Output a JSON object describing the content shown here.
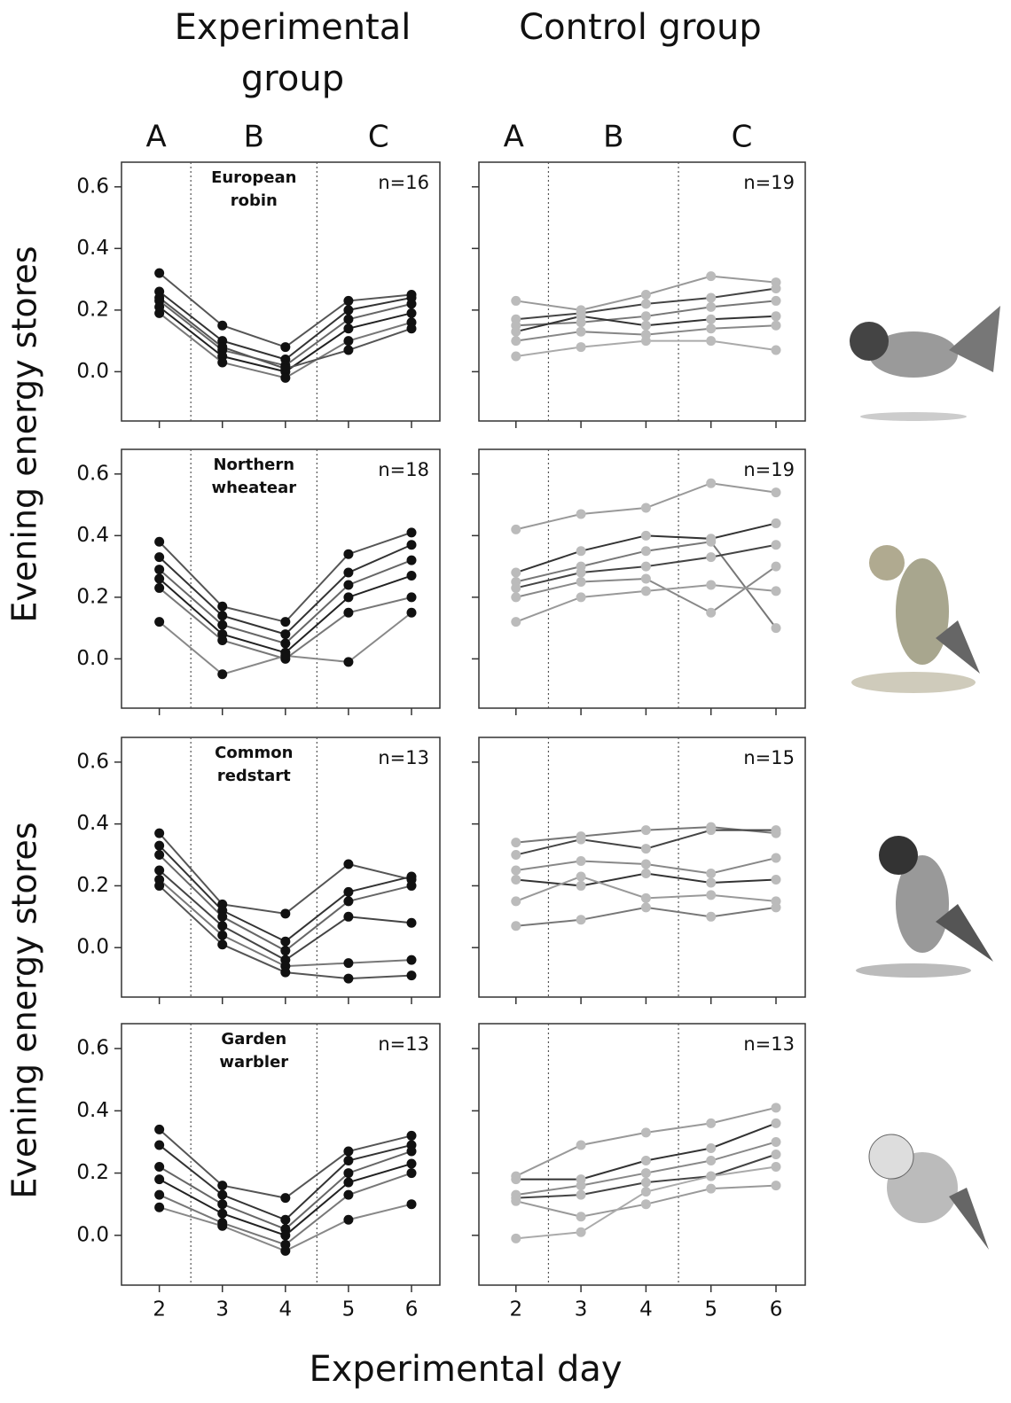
{
  "column_titles": [
    "Experimental group",
    "Control group"
  ],
  "y_label": "Evening energy stores",
  "x_label": "Experimental day",
  "chart_data": [
    {
      "type": "line",
      "title": "European robin",
      "annotation": "n=16",
      "phase_labels": [
        "A",
        "B",
        "C"
      ],
      "x": [
        2,
        3,
        4,
        5,
        6
      ],
      "xlim": [
        1.4,
        6.45
      ],
      "ylim": [
        -0.16,
        0.68
      ],
      "xticks": [
        2,
        3,
        4,
        5,
        6
      ],
      "yticks": [
        {
          "value": 0,
          "label": "0.0"
        },
        0.2,
        0.4,
        0.6
      ],
      "show_xtick_labels": false,
      "show_ytick_labels": true,
      "marker_color": "#111111",
      "series": [
        {
          "color": "#555555",
          "values": [
            0.32,
            0.15,
            0.08,
            0.23,
            0.25
          ]
        },
        {
          "color": "#333333",
          "values": [
            0.26,
            0.1,
            0.04,
            0.2,
            0.24
          ]
        },
        {
          "color": "#666666",
          "values": [
            0.23,
            0.07,
            0.02,
            0.17,
            0.22
          ]
        },
        {
          "color": "#222222",
          "values": [
            0.21,
            0.05,
            0.0,
            0.14,
            0.19
          ]
        },
        {
          "color": "#777777",
          "values": [
            0.19,
            0.03,
            -0.02,
            0.1,
            0.16
          ]
        },
        {
          "color": "#555555",
          "values": [
            0.24,
            0.08,
            0.01,
            0.07,
            0.14
          ]
        }
      ]
    },
    {
      "type": "line",
      "annotation": "n=19",
      "phase_labels": [
        "A",
        "B",
        "C"
      ],
      "x": [
        2,
        3,
        4,
        5,
        6
      ],
      "xlim": [
        1.43,
        6.45
      ],
      "ylim": [
        -0.16,
        0.68
      ],
      "xticks": [
        2,
        3,
        4,
        5,
        6
      ],
      "yticks": [
        0,
        0.2,
        0.4,
        0.6
      ],
      "show_xtick_labels": false,
      "show_ytick_labels": false,
      "marker_color": "#bbbbbb",
      "series": [
        {
          "color": "#999999",
          "values": [
            0.23,
            0.2,
            0.25,
            0.31,
            0.29
          ]
        },
        {
          "color": "#444444",
          "values": [
            0.17,
            0.19,
            0.22,
            0.24,
            0.27
          ]
        },
        {
          "color": "#777777",
          "values": [
            0.15,
            0.16,
            0.18,
            0.21,
            0.23
          ]
        },
        {
          "color": "#333333",
          "values": [
            0.13,
            0.18,
            0.15,
            0.17,
            0.18
          ]
        },
        {
          "color": "#888888",
          "values": [
            0.1,
            0.13,
            0.12,
            0.14,
            0.15
          ]
        },
        {
          "color": "#aaaaaa",
          "values": [
            0.05,
            0.08,
            0.1,
            0.1,
            0.07
          ]
        }
      ]
    },
    {
      "type": "line",
      "title": "Northern wheatear",
      "annotation": "n=18",
      "x": [
        2,
        3,
        4,
        5,
        6
      ],
      "xlim": [
        1.4,
        6.45
      ],
      "ylim": [
        -0.16,
        0.68
      ],
      "xticks": [
        2,
        3,
        4,
        5,
        6
      ],
      "yticks": [
        {
          "value": 0,
          "label": "0.0"
        },
        0.2,
        0.4,
        0.6
      ],
      "show_xtick_labels": false,
      "show_ytick_labels": true,
      "marker_color": "#111111",
      "series": [
        {
          "color": "#555555",
          "values": [
            0.38,
            0.17,
            0.12,
            0.34,
            0.41
          ]
        },
        {
          "color": "#333333",
          "values": [
            0.33,
            0.14,
            0.08,
            0.28,
            0.37
          ]
        },
        {
          "color": "#666666",
          "values": [
            0.29,
            0.11,
            0.05,
            0.24,
            0.32
          ]
        },
        {
          "color": "#222222",
          "values": [
            0.26,
            0.08,
            0.02,
            0.2,
            0.27
          ]
        },
        {
          "color": "#777777",
          "values": [
            0.23,
            0.06,
            0.0,
            0.15,
            0.2
          ]
        },
        {
          "color": "#888888",
          "values": [
            0.12,
            -0.05,
            0.01,
            -0.01,
            0.15
          ]
        }
      ]
    },
    {
      "type": "line",
      "annotation": "n=19",
      "x": [
        2,
        3,
        4,
        5,
        6
      ],
      "xlim": [
        1.43,
        6.45
      ],
      "ylim": [
        -0.16,
        0.68
      ],
      "xticks": [
        2,
        3,
        4,
        5,
        6
      ],
      "yticks": [
        0,
        0.2,
        0.4,
        0.6
      ],
      "show_xtick_labels": false,
      "show_ytick_labels": false,
      "marker_color": "#bbbbbb",
      "series": [
        {
          "color": "#999999",
          "values": [
            0.42,
            0.47,
            0.49,
            0.57,
            0.54
          ]
        },
        {
          "color": "#333333",
          "values": [
            0.28,
            0.35,
            0.4,
            0.39,
            0.44
          ]
        },
        {
          "color": "#777777",
          "values": [
            0.25,
            0.3,
            0.35,
            0.38,
            0.1
          ]
        },
        {
          "color": "#444444",
          "values": [
            0.23,
            0.28,
            0.3,
            0.33,
            0.37
          ]
        },
        {
          "color": "#888888",
          "values": [
            0.2,
            0.25,
            0.26,
            0.15,
            0.3
          ]
        },
        {
          "color": "#999999",
          "values": [
            0.12,
            0.2,
            0.22,
            0.24,
            0.22
          ]
        }
      ]
    },
    {
      "type": "line",
      "title": "Common redstart",
      "annotation": "n=13",
      "x": [
        2,
        3,
        4,
        5,
        6
      ],
      "xlim": [
        1.4,
        6.45
      ],
      "ylim": [
        -0.16,
        0.68
      ],
      "xticks": [
        2,
        3,
        4,
        5,
        6
      ],
      "yticks": [
        {
          "value": 0,
          "label": "0.0"
        },
        0.2,
        0.4,
        0.6
      ],
      "show_xtick_labels": false,
      "show_ytick_labels": true,
      "marker_color": "#111111",
      "series": [
        {
          "color": "#555555",
          "values": [
            0.37,
            0.14,
            0.11,
            0.27,
            0.22
          ]
        },
        {
          "color": "#333333",
          "values": [
            0.33,
            0.12,
            0.02,
            0.18,
            0.23
          ]
        },
        {
          "color": "#666666",
          "values": [
            0.3,
            0.1,
            -0.01,
            0.15,
            0.2
          ]
        },
        {
          "color": "#444444",
          "values": [
            0.25,
            0.07,
            -0.04,
            0.1,
            0.08
          ]
        },
        {
          "color": "#777777",
          "values": [
            0.22,
            0.04,
            -0.06,
            -0.05,
            -0.04
          ]
        },
        {
          "color": "#555555",
          "values": [
            0.2,
            0.01,
            -0.08,
            -0.1,
            -0.09
          ]
        }
      ]
    },
    {
      "type": "line",
      "annotation": "n=15",
      "x": [
        2,
        3,
        4,
        5,
        6
      ],
      "xlim": [
        1.43,
        6.45
      ],
      "ylim": [
        -0.16,
        0.68
      ],
      "xticks": [
        2,
        3,
        4,
        5,
        6
      ],
      "yticks": [
        0,
        0.2,
        0.4,
        0.6
      ],
      "show_xtick_labels": false,
      "show_ytick_labels": false,
      "marker_color": "#bbbbbb",
      "series": [
        {
          "color": "#777777",
          "values": [
            0.34,
            0.36,
            0.38,
            0.39,
            0.37
          ]
        },
        {
          "color": "#444444",
          "values": [
            0.3,
            0.35,
            0.32,
            0.38,
            0.38
          ]
        },
        {
          "color": "#888888",
          "values": [
            0.25,
            0.28,
            0.27,
            0.24,
            0.29
          ]
        },
        {
          "color": "#333333",
          "values": [
            0.22,
            0.2,
            0.24,
            0.21,
            0.22
          ]
        },
        {
          "color": "#999999",
          "values": [
            0.15,
            0.23,
            0.16,
            0.17,
            0.15
          ]
        },
        {
          "color": "#777777",
          "values": [
            0.07,
            0.09,
            0.13,
            0.1,
            0.13
          ]
        }
      ]
    },
    {
      "type": "line",
      "title": "Garden warbler",
      "annotation": "n=13",
      "x": [
        2,
        3,
        4,
        5,
        6
      ],
      "xlim": [
        1.4,
        6.45
      ],
      "ylim": [
        -0.16,
        0.68
      ],
      "xticks": [
        2,
        3,
        4,
        5,
        6
      ],
      "yticks": [
        {
          "value": 0,
          "label": "0.0"
        },
        0.2,
        0.4,
        0.6
      ],
      "show_xtick_labels": true,
      "show_ytick_labels": true,
      "marker_color": "#111111",
      "series": [
        {
          "color": "#555555",
          "values": [
            0.34,
            0.16,
            0.12,
            0.27,
            0.32
          ]
        },
        {
          "color": "#333333",
          "values": [
            0.29,
            0.13,
            0.05,
            0.24,
            0.29
          ]
        },
        {
          "color": "#666666",
          "values": [
            0.22,
            0.1,
            0.02,
            0.2,
            0.27
          ]
        },
        {
          "color": "#222222",
          "values": [
            0.18,
            0.07,
            0.0,
            0.17,
            0.23
          ]
        },
        {
          "color": "#777777",
          "values": [
            0.13,
            0.04,
            -0.03,
            0.13,
            0.2
          ]
        },
        {
          "color": "#888888",
          "values": [
            0.09,
            0.03,
            -0.05,
            0.05,
            0.1
          ]
        }
      ]
    },
    {
      "type": "line",
      "annotation": "n=13",
      "x": [
        2,
        3,
        4,
        5,
        6
      ],
      "xlim": [
        1.43,
        6.45
      ],
      "ylim": [
        -0.16,
        0.68
      ],
      "xticks": [
        2,
        3,
        4,
        5,
        6
      ],
      "yticks": [
        0,
        0.2,
        0.4,
        0.6
      ],
      "show_xtick_labels": true,
      "show_ytick_labels": false,
      "marker_color": "#bbbbbb",
      "series": [
        {
          "color": "#999999",
          "values": [
            0.19,
            0.29,
            0.33,
            0.36,
            0.41
          ]
        },
        {
          "color": "#333333",
          "values": [
            0.18,
            0.18,
            0.24,
            0.28,
            0.36
          ]
        },
        {
          "color": "#888888",
          "values": [
            0.13,
            0.16,
            0.2,
            0.24,
            0.3
          ]
        },
        {
          "color": "#444444",
          "values": [
            0.12,
            0.13,
            0.17,
            0.19,
            0.26
          ]
        },
        {
          "color": "#999999",
          "values": [
            0.11,
            0.06,
            0.1,
            0.15,
            0.16
          ]
        },
        {
          "color": "#aaaaaa",
          "values": [
            -0.01,
            0.01,
            0.14,
            0.19,
            0.22
          ]
        }
      ]
    }
  ]
}
